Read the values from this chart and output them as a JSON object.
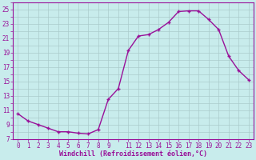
{
  "hours": [
    0,
    1,
    2,
    3,
    4,
    5,
    6,
    7,
    8,
    9,
    10,
    11,
    12,
    13,
    14,
    15,
    16,
    17,
    18,
    19,
    20,
    21,
    22,
    23
  ],
  "values": [
    10.5,
    9.5,
    9.0,
    8.5,
    8.0,
    8.0,
    7.8,
    7.7,
    8.3,
    12.5,
    14.0,
    19.3,
    21.3,
    21.5,
    22.2,
    23.2,
    24.7,
    24.8,
    24.8,
    23.6,
    22.2,
    18.5,
    16.5,
    15.2
  ],
  "line_color": "#991199",
  "marker_color": "#991199",
  "bg_color": "#c8ecec",
  "grid_color": "#aacccc",
  "axis_color": "#991199",
  "xlabel": "Windchill (Refroidissement éolien,°C)",
  "ylim": [
    7,
    26
  ],
  "xlim": [
    -0.5,
    23.5
  ],
  "yticks": [
    7,
    9,
    11,
    13,
    15,
    17,
    19,
    21,
    23,
    25
  ],
  "xtick_positions": [
    0,
    1,
    2,
    3,
    4,
    5,
    6,
    7,
    8,
    9,
    11,
    12,
    13,
    14,
    15,
    16,
    17,
    18,
    19,
    20,
    21,
    22,
    23
  ],
  "xtick_labels": [
    "0",
    "1",
    "2",
    "3",
    "4",
    "5",
    "6",
    "7",
    "8",
    "9",
    "11",
    "12",
    "13",
    "14",
    "15",
    "16",
    "17",
    "18",
    "19",
    "20",
    "21",
    "22",
    "23"
  ],
  "ylabel_fontsize": 5.5,
  "xlabel_fontsize": 6.0,
  "tick_fontsize": 5.5,
  "linewidth": 1.0,
  "markersize": 3.5
}
